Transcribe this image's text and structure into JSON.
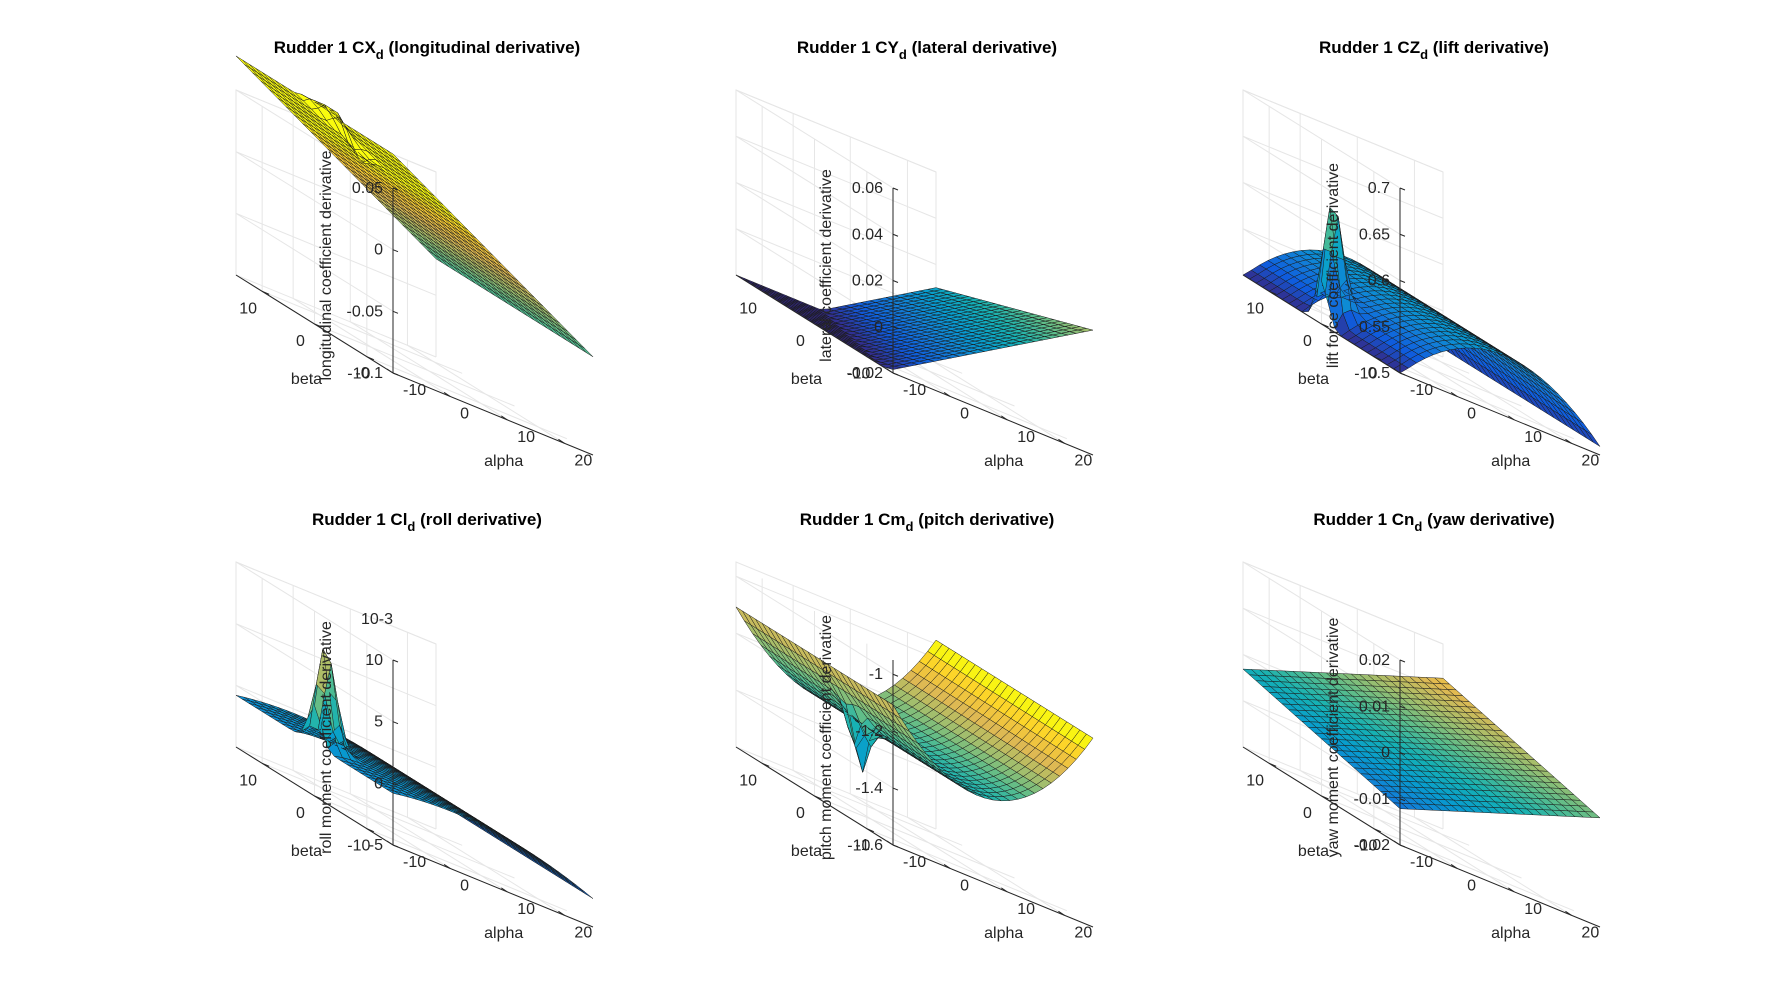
{
  "chart_data": [
    {
      "type": "surface",
      "title": "Rudder 1 CX",
      "title_sub": "d",
      "title_rest": " (longitudinal derivative)",
      "xlabel": "alpha",
      "ylabel": "beta",
      "zlabel": "longitudinal coefficient derivative",
      "xticks": [
        "-10",
        "0",
        "10",
        "20"
      ],
      "yticks": [
        "-10",
        "0",
        "10"
      ],
      "zticks": [
        "-0.1",
        "-0.05",
        "0",
        "0.05"
      ],
      "zlim": [
        -0.1,
        0.05
      ],
      "z_exponent": "",
      "colormap": "parula",
      "surface_model": {
        "base": 0.03,
        "alpha_slope": -0.0028,
        "beta_slope": 0.0,
        "curvature": 0.0,
        "spike": 0.045,
        "notch": -0.01
      }
    },
    {
      "type": "surface",
      "title": "Rudder 1 CY",
      "title_sub": "d",
      "title_rest": " (lateral derivative)",
      "xlabel": "alpha",
      "ylabel": "beta",
      "zlabel": "lateral coefficient derivative",
      "xticks": [
        "-10",
        "0",
        "10",
        "20"
      ],
      "yticks": [
        "-10",
        "0",
        "10"
      ],
      "zticks": [
        "-0.02",
        "0",
        "0.02",
        "0.04",
        "0.06"
      ],
      "zlim": [
        -0.02,
        0.06
      ],
      "z_exponent": "",
      "colormap": "parula",
      "surface_model": {
        "base": -0.005,
        "alpha_slope": 0.0015,
        "beta_slope": -0.0008,
        "curvature": 0.0,
        "spike": 0.0,
        "notch": 0.0
      }
    },
    {
      "type": "surface",
      "title": "Rudder 1 CZ",
      "title_sub": "d",
      "title_rest": " (lift derivative)",
      "xlabel": "alpha",
      "ylabel": "beta",
      "zlabel": "lift force coefficient derivative",
      "xticks": [
        "-10",
        "0",
        "10",
        "20"
      ],
      "yticks": [
        "-10",
        "0",
        "10"
      ],
      "zticks": [
        "0.5",
        "0.55",
        "0.6",
        "0.65",
        "0.7"
      ],
      "zlim": [
        0.5,
        0.7
      ],
      "z_exponent": "",
      "colormap": "parula",
      "surface_model": {
        "base": 0.565,
        "alpha_slope": 0.0005,
        "beta_slope": 0.0,
        "curvature": -0.0002,
        "spike": 0.13,
        "notch": 0.0
      }
    },
    {
      "type": "surface",
      "title": "Rudder 1 Cl",
      "title_sub": "d",
      "title_rest": " (roll derivative)",
      "xlabel": "alpha",
      "ylabel": "beta",
      "zlabel": "roll moment coefficient derivative",
      "xticks": [
        "-10",
        "0",
        "10",
        "20"
      ],
      "yticks": [
        "-10",
        "0",
        "10"
      ],
      "zticks": [
        "-5",
        "0",
        "5",
        "10"
      ],
      "zlim": [
        -5,
        10
      ],
      "z_exponent": "10-3",
      "colormap": "parula",
      "surface_model": {
        "base": -0.5,
        "alpha_slope": -0.05,
        "beta_slope": 0.0,
        "curvature": -0.004,
        "spike": 8.5,
        "notch": 0.0
      }
    },
    {
      "type": "surface",
      "title": "Rudder 1 Cm",
      "title_sub": "d",
      "title_rest": " (pitch derivative)",
      "xlabel": "alpha",
      "ylabel": "beta",
      "zlabel": "pitch moment coefficient derivative",
      "xticks": [
        "-10",
        "0",
        "10",
        "20"
      ],
      "yticks": [
        "-10",
        "0",
        "10"
      ],
      "zticks": [
        "-1.6",
        "-1.4",
        "-1.2",
        "-1"
      ],
      "zlim": [
        -1.6,
        -0.95
      ],
      "z_exponent": "",
      "colormap": "parula",
      "surface_model": {
        "base": -1.3,
        "alpha_slope": 0.004,
        "beta_slope": 0.0,
        "curvature": 0.0009,
        "spike": 0.0,
        "notch": -0.2
      }
    },
    {
      "type": "surface",
      "title": "Rudder 1 Cn",
      "title_sub": "d",
      "title_rest": " (yaw derivative)",
      "xlabel": "alpha",
      "ylabel": "beta",
      "zlabel": "yaw moment coefficient derivative",
      "xticks": [
        "-10",
        "0",
        "10",
        "20"
      ],
      "yticks": [
        "-10",
        "0",
        "10"
      ],
      "zticks": [
        "-0.02",
        "-0.01",
        "0",
        "0.01",
        "0.02"
      ],
      "zlim": [
        -0.02,
        0.02
      ],
      "z_exponent": "",
      "colormap": "parula",
      "surface_model": {
        "base": 0.0,
        "alpha_slope": 0.00045,
        "beta_slope": 0.0003,
        "curvature": 0.0,
        "spike": 0.0,
        "notch": 0.0
      }
    }
  ]
}
